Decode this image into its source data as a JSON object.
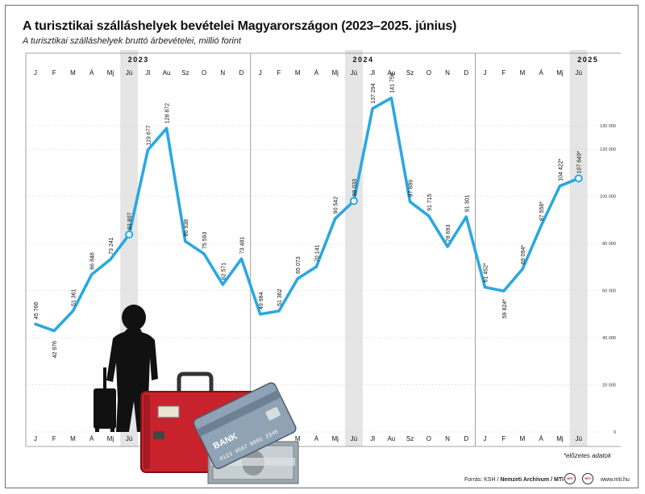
{
  "title": "A turisztikai szálláshelyek bevételei Magyarországon (2023–2025. június)",
  "subtitle": "A turisztikai szálláshelyek bruttó árbevételei, millió forint",
  "footnote": "*előzetes adatok",
  "source": {
    "prefix": "Forrás: KSH / ",
    "bold": "Nemzeti Archívum / MTI",
    "site": "www.mti.hu",
    "logo1": "MTI",
    "logo2": "MTI"
  },
  "colors": {
    "line": "#2ba8e0",
    "highlight_band": "#e5e5e5",
    "grid": "#d9d9d9",
    "text": "#111111"
  },
  "decoration": {
    "card_label": "BANK",
    "card_number": "0123 4567 8901 2345"
  },
  "chart_data": {
    "type": "line",
    "years": [
      "2023",
      "2024",
      "2025"
    ],
    "months": [
      "J",
      "F",
      "M",
      "Á",
      "Mj",
      "Jú",
      "Jl",
      "Au",
      "Sz",
      "O",
      "N",
      "D",
      "J",
      "F",
      "M",
      "Á",
      "Mj",
      "Jú",
      "Jl",
      "Au",
      "Sz",
      "O",
      "N",
      "D",
      "J",
      "F",
      "M",
      "Á",
      "Mj",
      "Jú"
    ],
    "values": [
      45766,
      42976,
      51361,
      66848,
      73241,
      83807,
      119677,
      128872,
      80938,
      75593,
      62571,
      73481,
      49984,
      51362,
      65073,
      70141,
      90542,
      98033,
      137294,
      141756,
      97689,
      91715,
      78693,
      91301,
      61452,
      59824,
      69094,
      87558,
      104422,
      107649
    ],
    "labels": [
      "45 766",
      "42 976",
      "51 361",
      "66 848",
      "73 241",
      "83 807",
      "119 677",
      "128 872",
      "80 938",
      "75 593",
      "62 571",
      "73 481",
      "49 984",
      "51 362",
      "65 073",
      "70 141",
      "90 542",
      "98 033",
      "137 294",
      "141 756",
      "97 689",
      "91 715",
      "78 693",
      "91 301",
      "61 452*",
      "59 824*",
      "69 094*",
      "87 558*",
      "104 422*",
      "107 649*"
    ],
    "preliminary_from_index": 24,
    "highlighted_indices": [
      5,
      17,
      29
    ],
    "ylim": [
      0,
      140000
    ],
    "yticks": [
      0,
      20000,
      40000,
      60000,
      80000,
      100000,
      120000,
      130000
    ],
    "ytick_labels": [
      "0",
      "20 000",
      "40 000",
      "60 000",
      "80 000",
      "100 000",
      "120 000",
      "130 000"
    ],
    "grid": true
  }
}
